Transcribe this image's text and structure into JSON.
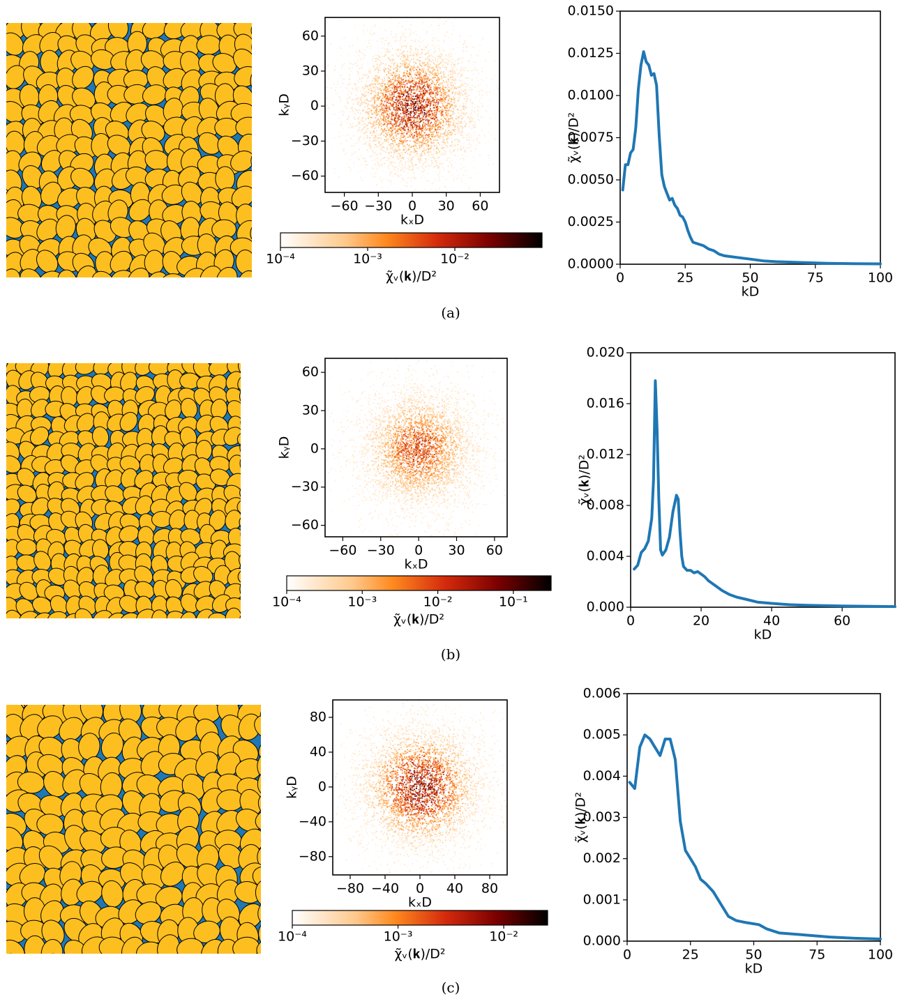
{
  "captions": [
    "(a)",
    "(b)",
    "(c)"
  ],
  "chart_data": [
    {
      "type": "heatmap",
      "xlabel": "kₓD",
      "ylabel": "kᵧD",
      "xlim": [
        -77,
        77
      ],
      "ylim": [
        -74,
        76
      ],
      "xticks": [
        {
          "value": -60,
          "label": "−60"
        },
        {
          "value": -30,
          "label": "−30"
        },
        0,
        30,
        60
      ],
      "yticks": [
        {
          "value": -60,
          "label": "−60"
        },
        {
          "value": -30,
          "label": "−30"
        },
        0,
        30,
        60
      ],
      "colorbar": {
        "label": "χ̃ᵥ(𝐤)/D²",
        "scale": "log",
        "lim": [
          0.0001,
          0.1
        ],
        "ticks": [
          {
            "value": 0.0001,
            "label": "10⁻⁴"
          },
          {
            "value": 0.001,
            "label": "10⁻³"
          },
          {
            "value": 0.01,
            "label": "10⁻²"
          }
        ]
      }
    },
    {
      "type": "line",
      "xlabel": "kD",
      "ylabel": "χ̃ᵥ(𝐤)/D²",
      "color": "#1f77b4",
      "xlim": [
        0,
        100
      ],
      "ylim": [
        0,
        0.015
      ],
      "xticks": [
        0,
        25,
        50,
        75,
        100
      ],
      "yticks": [
        {
          "value": 0,
          "label": "0.0000"
        },
        0.0025,
        {
          "value": 0.005,
          "label": "0.0050"
        },
        0.0075,
        {
          "value": 0.01,
          "label": "0.0100"
        },
        0.0125,
        {
          "value": 0.015,
          "label": "0.0150"
        }
      ],
      "x": [
        1,
        2,
        3,
        4,
        5,
        6,
        7,
        8,
        9,
        10,
        11,
        12,
        13,
        14,
        15,
        16,
        17,
        18,
        19,
        20,
        21,
        22,
        23,
        24,
        25,
        26,
        27,
        28,
        30,
        32,
        34,
        36,
        38,
        40,
        45,
        50,
        55,
        60,
        70,
        80,
        90,
        100
      ],
      "values": [
        0.0044,
        0.0059,
        0.0059,
        0.0066,
        0.0068,
        0.0081,
        0.0104,
        0.0118,
        0.0126,
        0.012,
        0.0118,
        0.0112,
        0.0113,
        0.0106,
        0.0076,
        0.0053,
        0.0046,
        0.0042,
        0.0038,
        0.0039,
        0.0035,
        0.0033,
        0.0029,
        0.0028,
        0.0025,
        0.002,
        0.0016,
        0.0013,
        0.0012,
        0.0011,
        0.0009,
        0.0008,
        0.0006,
        0.0005,
        0.0004,
        0.0003,
        0.0002,
        0.00015,
        0.0001,
        5e-05,
        3e-05,
        2e-05
      ]
    },
    {
      "type": "heatmap",
      "xlabel": "kₓD",
      "ylabel": "kᵧD",
      "xlim": [
        -74,
        70
      ],
      "ylim": [
        -69,
        71
      ],
      "xticks": [
        {
          "value": -60,
          "label": "−60"
        },
        {
          "value": -30,
          "label": "−30"
        },
        0,
        30,
        60
      ],
      "yticks": [
        {
          "value": -60,
          "label": "−60"
        },
        {
          "value": -30,
          "label": "−30"
        },
        0,
        30,
        60
      ],
      "colorbar": {
        "label": "χ̃ᵥ(𝐤)/D²",
        "scale": "log",
        "lim": [
          0.0001,
          0.3162
        ],
        "ticks": [
          {
            "value": 0.0001,
            "label": "10⁻⁴"
          },
          {
            "value": 0.001,
            "label": "10⁻³"
          },
          {
            "value": 0.01,
            "label": "10⁻²"
          },
          {
            "value": 0.1,
            "label": "10⁻¹"
          }
        ]
      }
    },
    {
      "type": "line",
      "xlabel": "kD",
      "ylabel": "χ̃ᵥ(𝐤)/D²",
      "color": "#1f77b4",
      "xlim": [
        0,
        75
      ],
      "ylim": [
        0,
        0.02
      ],
      "xticks": [
        0,
        20,
        40,
        60
      ],
      "yticks": [
        {
          "value": 0,
          "label": "0.000"
        },
        0.004,
        0.008,
        0.012,
        0.016,
        {
          "value": 0.02,
          "label": "0.020"
        }
      ],
      "x": [
        1,
        2,
        3,
        4,
        5,
        6,
        6.5,
        7,
        7.5,
        8,
        8.5,
        9,
        10,
        11,
        12,
        13,
        13.5,
        14,
        14.5,
        15,
        16,
        17,
        18,
        19,
        20,
        21,
        22,
        24,
        26,
        28,
        30,
        33,
        36,
        40,
        45,
        50,
        60,
        75
      ],
      "values": [
        0.003,
        0.0033,
        0.0043,
        0.0046,
        0.0052,
        0.007,
        0.01,
        0.0178,
        0.014,
        0.0085,
        0.0045,
        0.0041,
        0.0045,
        0.0055,
        0.0075,
        0.0088,
        0.0085,
        0.006,
        0.004,
        0.0032,
        0.0029,
        0.0029,
        0.0027,
        0.0028,
        0.0026,
        0.0024,
        0.0021,
        0.0017,
        0.0013,
        0.001,
        0.0008,
        0.0006,
        0.0004,
        0.0003,
        0.0002,
        0.00015,
        0.0001,
        5e-05
      ]
    },
    {
      "type": "heatmap",
      "xlabel": "kₓD",
      "ylabel": "kᵧD",
      "xlim": [
        -100,
        100
      ],
      "ylim": [
        -101,
        100
      ],
      "xticks": [
        {
          "value": -80,
          "label": "−80"
        },
        {
          "value": -40,
          "label": "−40"
        },
        0,
        40,
        80
      ],
      "yticks": [
        {
          "value": -80,
          "label": "−80"
        },
        {
          "value": -40,
          "label": "−40"
        },
        0,
        40,
        80
      ],
      "colorbar": {
        "label": "χ̃ᵥ(𝐤)/D²",
        "scale": "log",
        "lim": [
          0.0001,
          0.026
        ],
        "ticks": [
          {
            "value": 0.0001,
            "label": "10⁻⁴"
          },
          {
            "value": 0.001,
            "label": "10⁻³"
          },
          {
            "value": 0.01,
            "label": "10⁻²"
          }
        ]
      }
    },
    {
      "type": "line",
      "xlabel": "kD",
      "ylabel": "χ̃ᵥ(𝐤)/D²",
      "color": "#1f77b4",
      "xlim": [
        0,
        100
      ],
      "ylim": [
        0,
        0.006
      ],
      "xticks": [
        0,
        25,
        50,
        75,
        100
      ],
      "yticks": [
        {
          "value": 0,
          "label": "0.000"
        },
        0.001,
        0.002,
        0.003,
        0.004,
        0.005,
        0.006
      ],
      "x": [
        1,
        3,
        5,
        7,
        9,
        11,
        13,
        15,
        17,
        19,
        21,
        23,
        25,
        27,
        29,
        31,
        34,
        37,
        40,
        43,
        47,
        52,
        55,
        60,
        70,
        80,
        90,
        100
      ],
      "values": [
        0.00385,
        0.0037,
        0.0047,
        0.005,
        0.0049,
        0.0047,
        0.0045,
        0.0049,
        0.0049,
        0.0044,
        0.0029,
        0.0022,
        0.002,
        0.0018,
        0.0015,
        0.0014,
        0.0012,
        0.0009,
        0.0006,
        0.0005,
        0.00045,
        0.0004,
        0.0003,
        0.0002,
        0.00015,
        0.0001,
        7e-05,
        5e-05
      ]
    }
  ]
}
